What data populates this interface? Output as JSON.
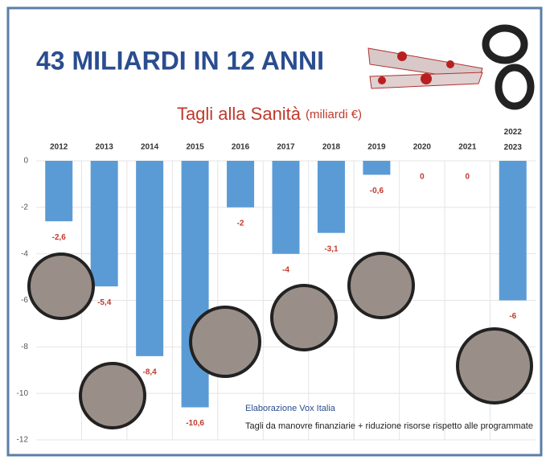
{
  "chart_data": {
    "type": "bar",
    "title": "43 MILIARDI IN 12 ANNI",
    "subtitle": "Tagli alla Sanità",
    "unit": "(miliardi €)",
    "categories": [
      "2012",
      "2013",
      "2014",
      "2015",
      "2016",
      "2017",
      "2018",
      "2019",
      "2020",
      "2021",
      "2022\n2023"
    ],
    "values": [
      -2.6,
      -5.4,
      -8.4,
      -10.6,
      -2,
      -4,
      -3.1,
      -0.6,
      0,
      0,
      -6
    ],
    "value_labels": [
      "-2,6",
      "-5,4",
      "-8,4",
      "-10,6",
      "-2",
      "-4",
      "-3,1",
      "-0,6",
      "0",
      "0",
      "-6"
    ],
    "color": "#5b9bd5",
    "ylim": [
      -12,
      0
    ],
    "yticks": [
      0,
      -2,
      -4,
      -6,
      -8,
      -10,
      -12
    ],
    "grid": true,
    "annotations": [
      "Elaborazione Vox Italia",
      "Tagli da manovre finanziarie + riduzione risorse rispetto alle programmate"
    ]
  }
}
